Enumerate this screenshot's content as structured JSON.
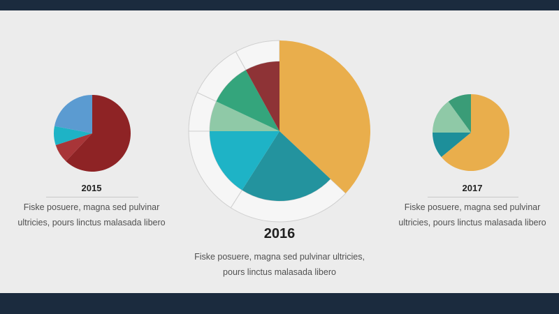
{
  "colors": {
    "background": "#ececec",
    "frame": "#1b2b3e"
  },
  "chart_data": [
    {
      "type": "pie",
      "title": "2015",
      "description": [
        "Fiske posuere, magna sed pulvinar",
        "ultricies, pours linctus malasada libero"
      ],
      "slices": [
        {
          "value": 62,
          "color": "#8e2325"
        },
        {
          "value": 8,
          "color": "#a83538"
        },
        {
          "value": 8,
          "color": "#1eb3c6"
        },
        {
          "value": 22,
          "color": "#5b9bd1"
        }
      ]
    },
    {
      "type": "pie",
      "title": "2016",
      "description": [
        "Fiske posuere, magna sed pulvinar ultricies,",
        "pours linctus malasada libero"
      ],
      "slices": [
        {
          "value": 37,
          "color": "#e9ae4c"
        },
        {
          "value": 22,
          "color": "#23939e"
        },
        {
          "value": 16,
          "color": "#1eb3c6"
        },
        {
          "value": 7,
          "color": "#8fc9a7"
        },
        {
          "value": 10,
          "color": "#34a57c"
        },
        {
          "value": 8,
          "color": "#8e3336"
        }
      ]
    },
    {
      "type": "pie",
      "title": "2017",
      "description": [
        "Fiske posuere, magna sed pulvinar",
        "ultricies, pours linctus malasada libero"
      ],
      "slices": [
        {
          "value": 64,
          "color": "#e9ae4c"
        },
        {
          "value": 11,
          "color": "#1d8f9a"
        },
        {
          "value": 15,
          "color": "#8fc9a7"
        },
        {
          "value": 10,
          "color": "#3a9c77"
        }
      ]
    }
  ]
}
